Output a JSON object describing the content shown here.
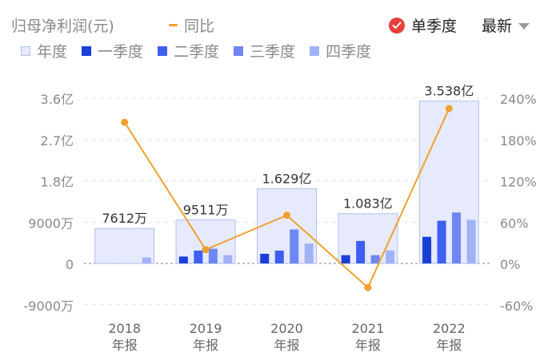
{
  "header": {
    "metric_label": "归母净利润(元)",
    "yoy_label": "同比",
    "single_quarter_label": "单季度",
    "latest_label": "最新"
  },
  "legend": {
    "annual": "年度",
    "q1": "一季度",
    "q2": "二季度",
    "q3": "三季度",
    "q4": "四季度"
  },
  "colors": {
    "annual_fill": "#e6eafc",
    "annual_border": "#b3c0f2",
    "q1": "#1a3fd6",
    "q2": "#3e5ff0",
    "q3": "#6e87f3",
    "q4": "#a2b2f6",
    "yoy": "#f0a030",
    "check": "#e8403c"
  },
  "chart_data": {
    "type": "bar",
    "categories": [
      "2018\n年报",
      "2019\n年报",
      "2020\n年报",
      "2021\n年报",
      "2022\n年报"
    ],
    "x_tick_lines": [
      [
        "2018",
        "年报"
      ],
      [
        "2019",
        "年报"
      ],
      [
        "2020",
        "年报"
      ],
      [
        "2021",
        "年报"
      ],
      [
        "2022",
        "年报"
      ]
    ],
    "unit": "万",
    "series": [
      {
        "name": "年度",
        "values": [
          7612,
          9511,
          16290,
          10830,
          35380
        ]
      },
      {
        "name": "一季度",
        "values": [
          0,
          1500,
          2100,
          1800,
          5800
        ]
      },
      {
        "name": "二季度",
        "values": [
          0,
          2800,
          2800,
          4900,
          9300
        ]
      },
      {
        "name": "三季度",
        "values": [
          0,
          3200,
          7400,
          1800,
          11100
        ]
      },
      {
        "name": "四季度",
        "values": [
          1300,
          1800,
          4300,
          2800,
          9500
        ]
      }
    ],
    "annual_labels": [
      "7612万",
      "9511万",
      "1.629亿",
      "1.083亿",
      "3.538亿"
    ],
    "yoy": {
      "name": "同比",
      "values": [
        205,
        20,
        70,
        -35,
        225
      ]
    },
    "y_left": {
      "ticks": [
        36000,
        27000,
        18000,
        9000,
        0,
        -9000
      ],
      "tick_labels": [
        "3.6亿",
        "2.7亿",
        "1.8亿",
        "9000万",
        "0",
        "-9000万"
      ],
      "ylim": [
        -9000,
        36000
      ]
    },
    "y_right": {
      "ticks": [
        240,
        180,
        120,
        60,
        0,
        -60
      ],
      "tick_labels": [
        "240%",
        "180%",
        "120%",
        "60%",
        "0%",
        "-60%"
      ],
      "ylim": [
        -60,
        240
      ]
    },
    "grid": true
  }
}
